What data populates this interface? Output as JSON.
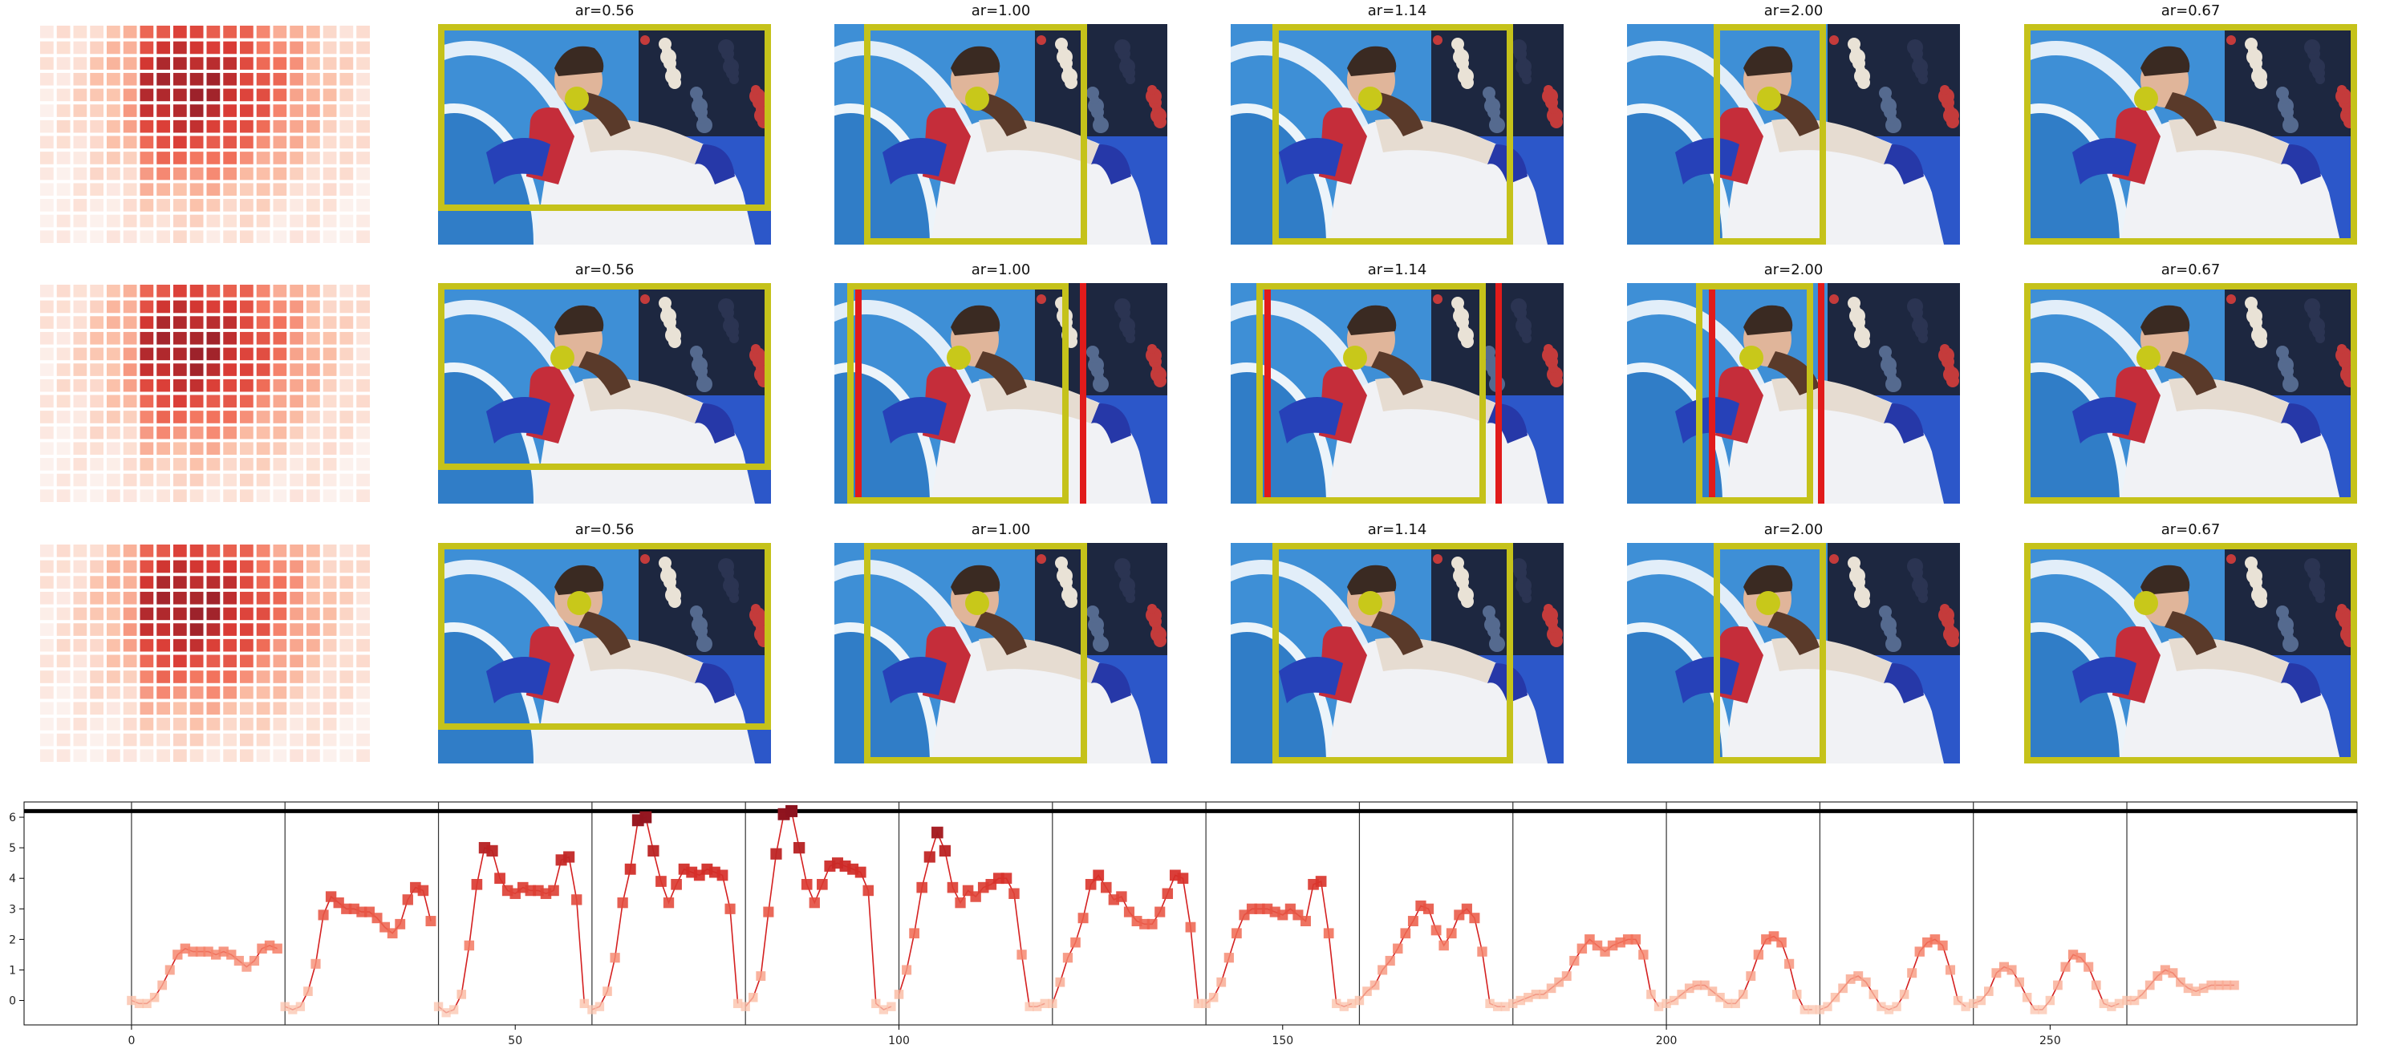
{
  "rows": [
    {
      "aspect_labels": [
        "ar=0.56",
        "ar=1.00",
        "ar=1.14",
        "ar=2.00",
        "ar=0.67"
      ]
    },
    {
      "aspect_labels": [
        "ar=0.56",
        "ar=1.00",
        "ar=1.14",
        "ar=2.00",
        "ar=0.67"
      ]
    },
    {
      "aspect_labels": [
        "ar=0.56",
        "ar=1.00",
        "ar=1.14",
        "ar=2.00",
        "ar=0.67"
      ]
    }
  ],
  "colors": {
    "crop_box": "#c5c21a",
    "alt_box": "#e11b1b",
    "line": "#d42020",
    "marker_dark": "#8b1a1a",
    "marker_light": "#fbd9cb",
    "separator": "#333333"
  },
  "chart_data": {
    "type": "line",
    "title": "",
    "xlabel": "",
    "ylabel": "",
    "xlim": [
      -14,
      290
    ],
    "ylim": [
      -0.8,
      6.5
    ],
    "xticks": [
      "0",
      "50",
      "100",
      "150",
      "200",
      "250"
    ],
    "yticks": [
      "0",
      "1",
      "2",
      "3",
      "4",
      "5",
      "6"
    ],
    "grid": false,
    "legend": "none",
    "reference_line_y": 6.2,
    "segment_boundaries_x": [
      0,
      20,
      40,
      60,
      80,
      100,
      120,
      140,
      160,
      180,
      200,
      220,
      240,
      260
    ],
    "segments": [
      {
        "x_start": 0,
        "values": [
          0.0,
          -0.1,
          -0.1,
          0.1,
          0.5,
          1.0,
          1.5,
          1.7,
          1.6,
          1.6,
          1.6,
          1.5,
          1.6,
          1.5,
          1.3,
          1.1,
          1.3,
          1.7,
          1.8,
          1.7
        ]
      },
      {
        "x_start": 20,
        "values": [
          -0.2,
          -0.3,
          -0.2,
          0.3,
          1.2,
          2.8,
          3.4,
          3.2,
          3.0,
          3.0,
          2.9,
          2.9,
          2.7,
          2.4,
          2.2,
          2.5,
          3.3,
          3.7,
          3.6,
          2.6
        ]
      },
      {
        "x_start": 40,
        "values": [
          -0.2,
          -0.4,
          -0.3,
          0.2,
          1.8,
          3.8,
          5.0,
          4.9,
          4.0,
          3.6,
          3.5,
          3.7,
          3.6,
          3.6,
          3.5,
          3.6,
          4.6,
          4.7,
          3.3,
          -0.1
        ]
      },
      {
        "x_start": 60,
        "values": [
          -0.3,
          -0.2,
          0.3,
          1.4,
          3.2,
          4.3,
          5.9,
          6.0,
          4.9,
          3.9,
          3.2,
          3.8,
          4.3,
          4.2,
          4.1,
          4.3,
          4.2,
          4.1,
          3.0,
          -0.1
        ]
      },
      {
        "x_start": 80,
        "values": [
          -0.2,
          0.1,
          0.8,
          2.9,
          4.8,
          6.1,
          6.2,
          5.0,
          3.8,
          3.2,
          3.8,
          4.4,
          4.5,
          4.4,
          4.3,
          4.2,
          3.6,
          -0.1,
          -0.3,
          -0.2
        ]
      },
      {
        "x_start": 100,
        "values": [
          0.2,
          1.0,
          2.2,
          3.7,
          4.7,
          5.5,
          4.9,
          3.7,
          3.2,
          3.6,
          3.4,
          3.7,
          3.8,
          4.0,
          4.0,
          3.5,
          1.5,
          -0.2,
          -0.2,
          -0.1
        ]
      },
      {
        "x_start": 120,
        "values": [
          -0.1,
          0.6,
          1.4,
          1.9,
          2.7,
          3.8,
          4.1,
          3.7,
          3.3,
          3.4,
          2.9,
          2.6,
          2.5,
          2.5,
          2.9,
          3.5,
          4.1,
          4.0,
          2.4,
          -0.1
        ]
      },
      {
        "x_start": 140,
        "values": [
          -0.1,
          0.1,
          0.6,
          1.4,
          2.2,
          2.8,
          3.0,
          3.0,
          3.0,
          2.9,
          2.8,
          3.0,
          2.8,
          2.6,
          3.8,
          3.9,
          2.2,
          -0.1,
          -0.2,
          -0.1
        ]
      },
      {
        "x_start": 160,
        "values": [
          0.0,
          0.3,
          0.5,
          1.0,
          1.3,
          1.7,
          2.2,
          2.6,
          3.1,
          3.0,
          2.3,
          1.8,
          2.2,
          2.8,
          3.0,
          2.7,
          1.6,
          -0.1,
          -0.2,
          -0.2
        ]
      },
      {
        "x_start": 180,
        "values": [
          -0.1,
          0.0,
          0.1,
          0.2,
          0.2,
          0.4,
          0.6,
          0.8,
          1.3,
          1.7,
          2.0,
          1.8,
          1.6,
          1.8,
          1.9,
          2.0,
          2.0,
          1.5,
          0.2,
          -0.2
        ]
      },
      {
        "x_start": 200,
        "values": [
          -0.1,
          0.0,
          0.2,
          0.4,
          0.5,
          0.5,
          0.3,
          0.1,
          -0.1,
          -0.1,
          0.2,
          0.8,
          1.5,
          2.0,
          2.1,
          1.9,
          1.2,
          0.2,
          -0.3,
          -0.3
        ]
      },
      {
        "x_start": 220,
        "values": [
          -0.3,
          -0.2,
          0.1,
          0.4,
          0.7,
          0.8,
          0.6,
          0.2,
          -0.2,
          -0.3,
          -0.2,
          0.2,
          0.9,
          1.6,
          1.9,
          2.0,
          1.8,
          1.0,
          0.0,
          -0.2
        ]
      },
      {
        "x_start": 240,
        "values": [
          -0.1,
          0.0,
          0.3,
          0.9,
          1.1,
          1.0,
          0.6,
          0.1,
          -0.3,
          -0.3,
          0.0,
          0.5,
          1.1,
          1.5,
          1.4,
          1.1,
          0.5,
          -0.1,
          -0.2,
          -0.1
        ]
      },
      {
        "x_start": 260,
        "values": [
          0.0,
          0.0,
          0.2,
          0.5,
          0.8,
          1.0,
          0.9,
          0.6,
          0.4,
          0.3,
          0.4,
          0.5,
          0.5,
          0.5,
          0.5
        ]
      }
    ]
  }
}
